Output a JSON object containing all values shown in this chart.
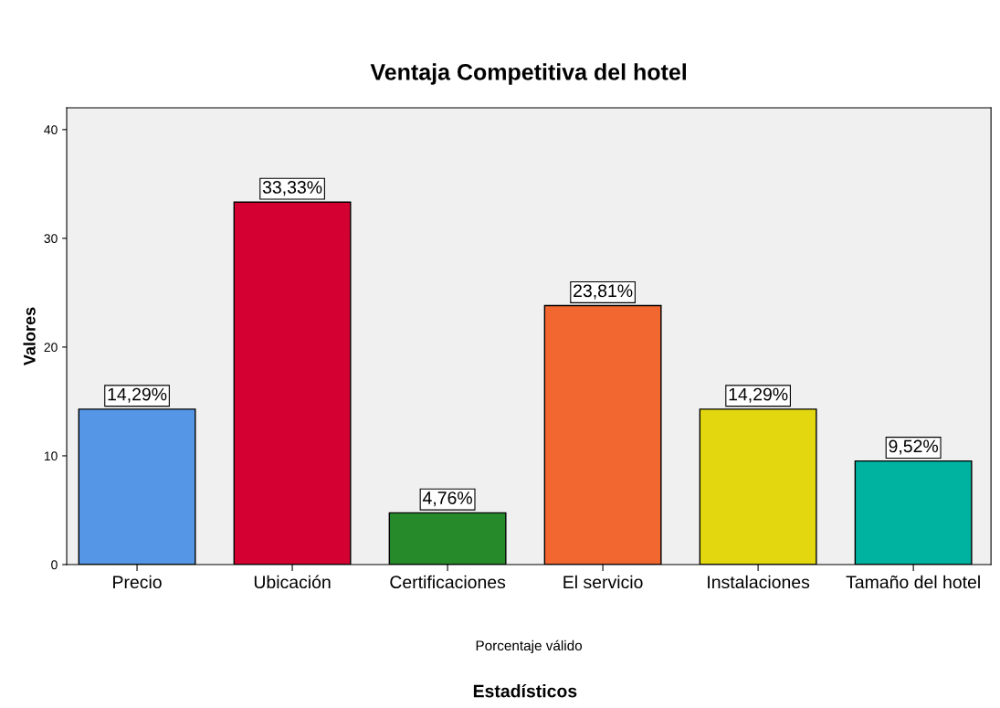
{
  "chart_data": {
    "type": "bar",
    "title": "Ventaja Competitiva del hotel",
    "xlabel": "Porcentaje válido",
    "ylabel": "Valores",
    "categories": [
      "Precio",
      "Ubicación",
      "Certificaciones",
      "El servicio",
      "Instalaciones",
      "Tamaño del hotel"
    ],
    "values": [
      14.29,
      33.33,
      4.76,
      23.81,
      14.29,
      9.52
    ],
    "colors": [
      "#5596e6",
      "#d50032",
      "#268a2b",
      "#f26630",
      "#e3d80f",
      "#00b3a0"
    ],
    "value_labels": [
      "14,29%",
      "33,33%",
      "4,76%",
      "23,81%",
      "14,29%",
      "9,52%"
    ],
    "ylim": [
      0,
      42
    ],
    "yticks": [
      0,
      10,
      20,
      30,
      40
    ],
    "grid": false,
    "legend": false,
    "annotations": [
      "Estadísticos"
    ]
  }
}
